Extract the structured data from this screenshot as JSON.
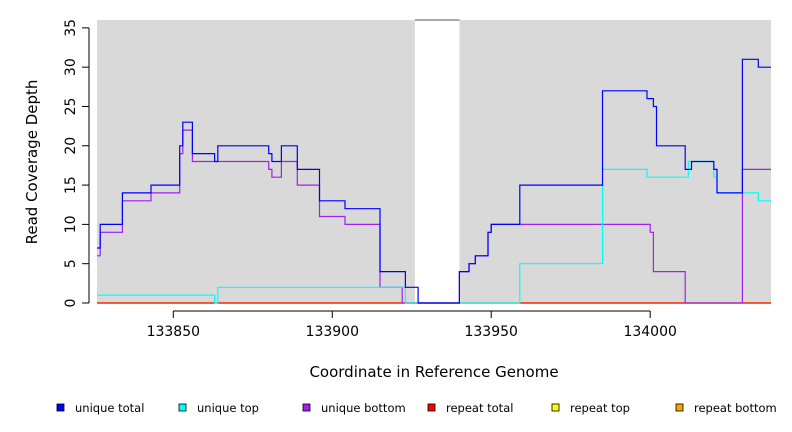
{
  "chart_data": {
    "type": "line",
    "step": true,
    "xlabel": "Coordinate in Reference Genome",
    "ylabel": "Read Coverage Depth",
    "xlim": [
      133826,
      134038
    ],
    "ylim": [
      0,
      36
    ],
    "x_ticks": [
      133850,
      133900,
      133950,
      134000
    ],
    "y_ticks": [
      0,
      5,
      10,
      15,
      20,
      25,
      30,
      35
    ],
    "background_color": "#d9d9d9",
    "gap_regions": [
      [
        133926,
        133940
      ]
    ],
    "grid": false,
    "legend_position": "bottom",
    "series": [
      {
        "name": "unique total",
        "color": "#0000ff",
        "points": [
          [
            133826,
            7
          ],
          [
            133827,
            10
          ],
          [
            133834,
            14
          ],
          [
            133843,
            15
          ],
          [
            133852,
            20
          ],
          [
            133853,
            23
          ],
          [
            133856,
            19
          ],
          [
            133863,
            18
          ],
          [
            133864,
            20
          ],
          [
            133880,
            19
          ],
          [
            133881,
            18
          ],
          [
            133884,
            20
          ],
          [
            133889,
            17
          ],
          [
            133896,
            13
          ],
          [
            133904,
            12
          ],
          [
            133915,
            4
          ],
          [
            133923,
            2
          ],
          [
            133927,
            0
          ],
          [
            133940,
            4
          ],
          [
            133943,
            5
          ],
          [
            133945,
            6
          ],
          [
            133949,
            9
          ],
          [
            133950,
            10
          ],
          [
            133959,
            15
          ],
          [
            133985,
            27
          ],
          [
            133999,
            26
          ],
          [
            134001,
            25
          ],
          [
            134002,
            20
          ],
          [
            134011,
            17
          ],
          [
            134013,
            18
          ],
          [
            134020,
            17
          ],
          [
            134021,
            14
          ],
          [
            134029,
            31
          ],
          [
            134034,
            30
          ],
          [
            134038,
            30
          ]
        ]
      },
      {
        "name": "unique top",
        "color": "#00ffff",
        "points": [
          [
            133826,
            1
          ],
          [
            133863,
            0
          ],
          [
            133864,
            2
          ],
          [
            133915,
            2
          ],
          [
            133923,
            0
          ],
          [
            133940,
            0
          ],
          [
            133959,
            5
          ],
          [
            133985,
            17
          ],
          [
            133999,
            16
          ],
          [
            134011,
            16
          ],
          [
            134012,
            18
          ],
          [
            134020,
            16
          ],
          [
            134021,
            14
          ],
          [
            134034,
            13
          ],
          [
            134038,
            13
          ]
        ]
      },
      {
        "name": "unique bottom",
        "color": "#a020f0",
        "points": [
          [
            133826,
            6
          ],
          [
            133827,
            9
          ],
          [
            133834,
            13
          ],
          [
            133843,
            14
          ],
          [
            133852,
            19
          ],
          [
            133853,
            22
          ],
          [
            133856,
            18
          ],
          [
            133880,
            17
          ],
          [
            133881,
            16
          ],
          [
            133884,
            18
          ],
          [
            133889,
            15
          ],
          [
            133896,
            11
          ],
          [
            133904,
            10
          ],
          [
            133915,
            2
          ],
          [
            133922,
            0
          ],
          [
            133940,
            4
          ],
          [
            133943,
            5
          ],
          [
            133945,
            6
          ],
          [
            133949,
            9
          ],
          [
            133950,
            10
          ],
          [
            134000,
            9
          ],
          [
            134001,
            4
          ],
          [
            134011,
            0
          ],
          [
            134029,
            17
          ],
          [
            134038,
            17
          ]
        ]
      },
      {
        "name": "repeat total",
        "color": "#ff0000",
        "points": [
          [
            133826,
            0
          ],
          [
            134038,
            0
          ]
        ]
      },
      {
        "name": "repeat top",
        "color": "#ffff00",
        "points": [
          [
            133826,
            0
          ],
          [
            134038,
            0
          ]
        ]
      },
      {
        "name": "repeat bottom",
        "color": "#ffa500",
        "points": [
          [
            133826,
            0
          ],
          [
            134038,
            0
          ]
        ]
      }
    ]
  }
}
